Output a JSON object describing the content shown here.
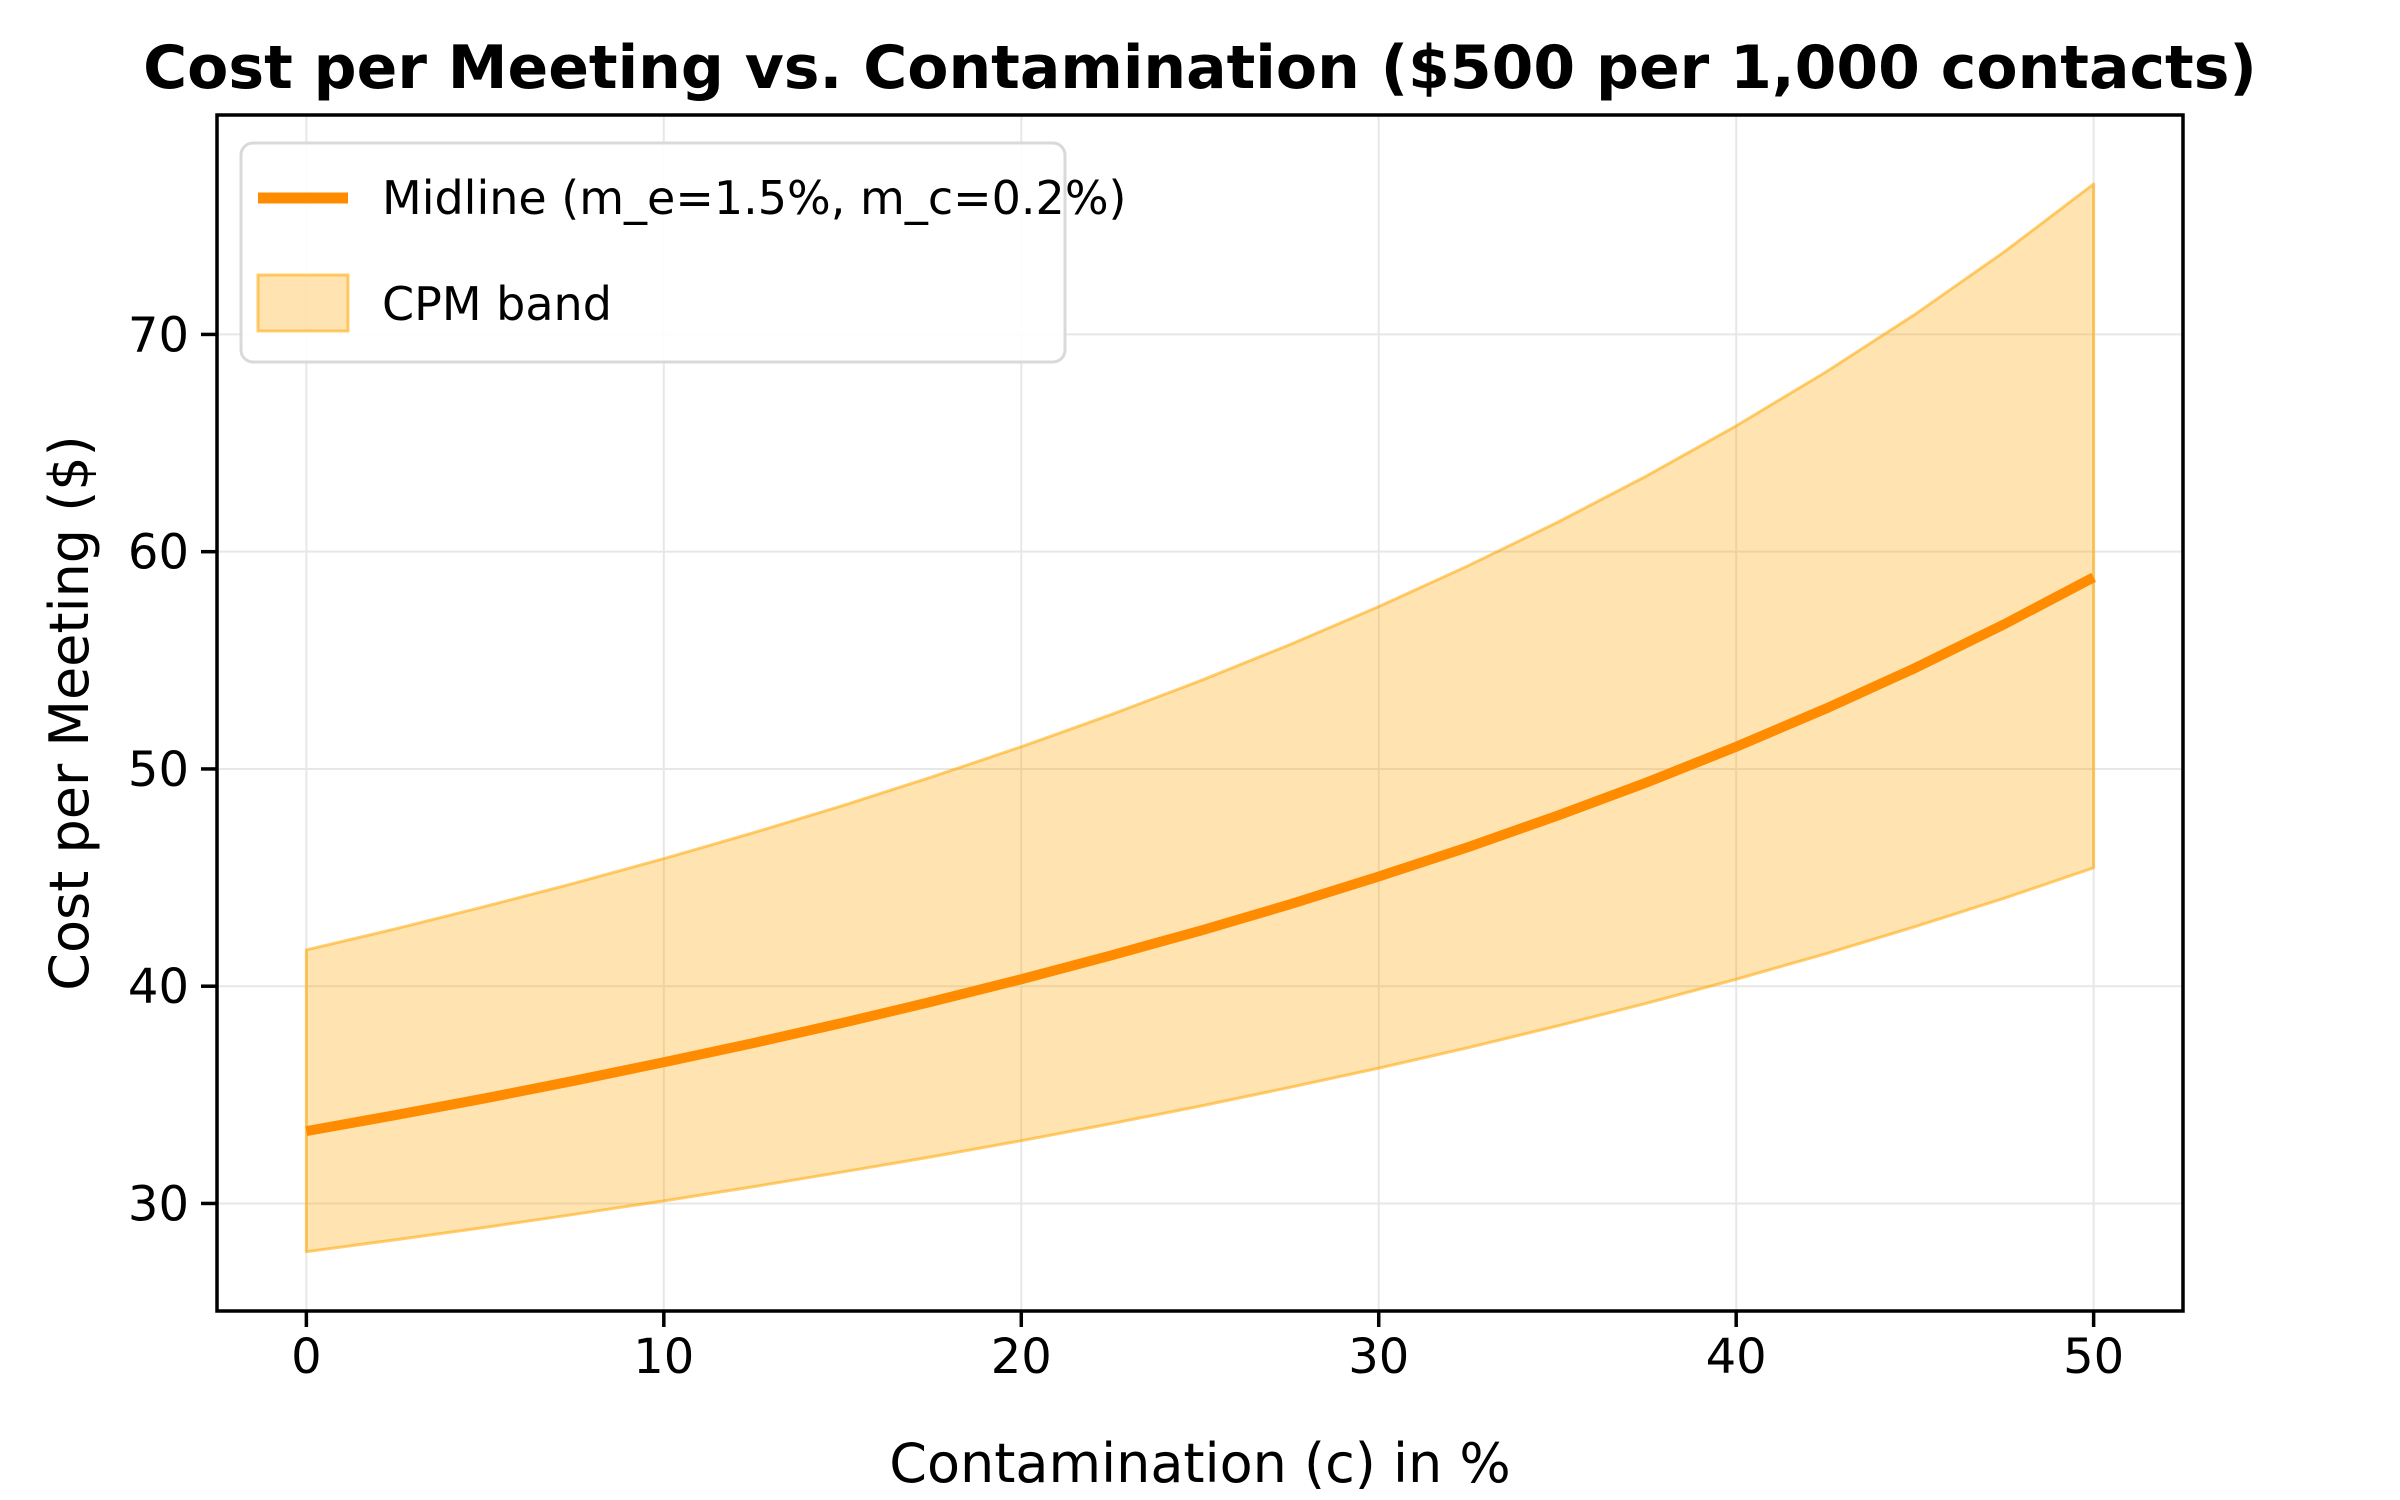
{
  "figure": {
    "title": "Cost per Meeting vs. Contamination ($500 per 1,000 contacts)"
  },
  "chart_data": {
    "type": "line",
    "title": "Cost per Meeting vs. Contamination ($500 per 1,000 contacts)",
    "xlabel": "Contamination (c) in %",
    "ylabel": "Cost per Meeting ($)",
    "xlim": [
      -2.5,
      52.5
    ],
    "ylim": [
      25.05,
      80.1
    ],
    "x_ticks": [
      0,
      10,
      20,
      30,
      40,
      50
    ],
    "y_ticks": [
      30,
      40,
      50,
      60,
      70
    ],
    "grid": true,
    "legend_position": "upper left",
    "x": [
      0,
      2.5,
      5,
      7.5,
      10,
      12.5,
      15,
      17.5,
      20,
      22.5,
      25,
      27.5,
      30,
      32.5,
      35,
      37.5,
      40,
      42.5,
      45,
      47.5,
      50
    ],
    "series": [
      {
        "name": "Midline (m_e=1.5%, m_c=0.2%)",
        "role": "midline",
        "color": "#ff8c00",
        "line_width": 10,
        "values": [
          33.33,
          34.07,
          34.84,
          35.65,
          36.5,
          37.38,
          38.31,
          39.29,
          40.32,
          41.41,
          42.55,
          43.76,
          45.05,
          46.4,
          47.85,
          49.38,
          51.02,
          52.77,
          54.64,
          56.66,
          58.82
        ]
      },
      {
        "name": "CPM band upper",
        "role": "band-upper",
        "values": [
          41.67,
          42.64,
          43.67,
          44.74,
          45.87,
          47.06,
          48.31,
          49.63,
          51.02,
          52.49,
          54.05,
          55.71,
          57.47,
          59.35,
          61.35,
          63.49,
          65.79,
          68.26,
          70.92,
          73.8,
          76.92
        ]
      },
      {
        "name": "CPM band lower",
        "role": "band-lower",
        "values": [
          27.78,
          28.33,
          28.9,
          29.5,
          30.12,
          30.77,
          31.45,
          32.15,
          32.89,
          33.67,
          34.48,
          35.34,
          36.23,
          37.17,
          38.17,
          39.22,
          40.32,
          41.49,
          42.74,
          44.05,
          45.45
        ]
      }
    ],
    "band_label": "CPM band",
    "band_fill": "rgba(255,165,0,0.30)",
    "band_edge": "rgba(255,165,0,0.55)"
  },
  "legend": {
    "midline_label": "Midline (m_e=1.5%, m_c=0.2%)",
    "band_label": "CPM band"
  },
  "colors": {
    "midline": "#ff8c00",
    "band_fill": "rgba(255,165,0,0.30)",
    "band_edge": "rgba(255,165,0,0.55)",
    "grid": "#e7e7e7",
    "spine": "#000000",
    "legend_border": "#d9d9d9",
    "background": "#ffffff"
  }
}
